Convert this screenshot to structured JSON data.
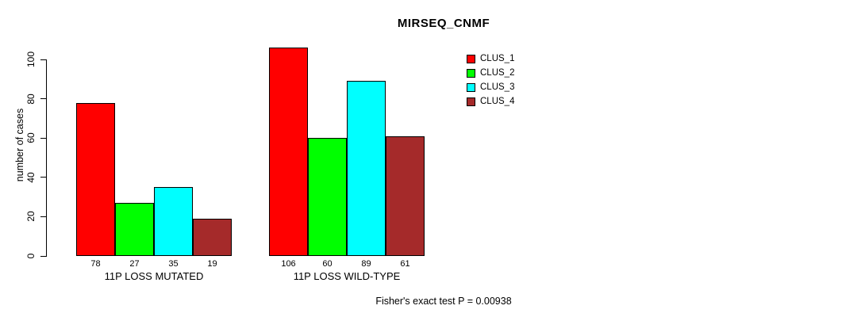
{
  "chart_data": {
    "type": "bar",
    "title": "MIRSEQ_CNMF",
    "ylabel": "number of cases",
    "xlabel": "",
    "categories": [
      "11P LOSS MUTATED",
      "11P LOSS WILD-TYPE"
    ],
    "series": [
      {
        "name": "CLUS_1",
        "color": "#FF0000",
        "values": [
          78,
          106
        ]
      },
      {
        "name": "CLUS_2",
        "color": "#00FF00",
        "values": [
          27,
          60
        ]
      },
      {
        "name": "CLUS_3",
        "color": "#00FFFF",
        "values": [
          35,
          89
        ]
      },
      {
        "name": "CLUS_4",
        "color": "#A52A2A",
        "values": [
          19,
          61
        ]
      }
    ],
    "bar_value_labels": [
      [
        "78",
        "27",
        "35",
        "19"
      ],
      [
        "106",
        "60",
        "89",
        "61"
      ]
    ],
    "yticks": [
      0,
      20,
      40,
      60,
      80,
      100
    ],
    "ylim": [
      0,
      106
    ],
    "grid": false,
    "legend_position": "top-right",
    "annotation": "Fisher's exact test P = 0.00938"
  }
}
